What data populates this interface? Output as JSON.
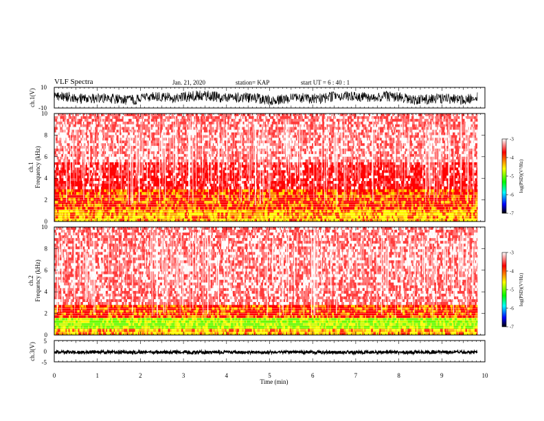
{
  "header": {
    "title": "VLF Spectra",
    "date": "Jan. 21, 2020",
    "station": "station= KAP",
    "start": "start  UT  =   6  : 40 : 1"
  },
  "colors": {
    "colormap": [
      "#ffffff",
      "#ff0000",
      "#ffff00",
      "#00ff00",
      "#00ffff",
      "#0000ff",
      "#000000"
    ],
    "trace": "#000000"
  },
  "chart_data": [
    {
      "type": "line",
      "name": "ch1-waveform",
      "ylabel": "ch.1(V)",
      "xlim": [
        0,
        10
      ],
      "ylim": [
        -10,
        10
      ],
      "yticks": [
        "10",
        "-10"
      ],
      "x_extent": [
        0,
        9.83
      ],
      "baseline": 0,
      "amplitude": 5
    },
    {
      "type": "heatmap",
      "name": "ch1-spectrogram",
      "ylabel": "ch.1\nFrequency (kHz)",
      "xlim": [
        0,
        10
      ],
      "ylim": [
        0,
        10
      ],
      "yticks": [
        "0",
        "2",
        "4",
        "6",
        "8",
        "10"
      ],
      "x_extent": [
        0,
        9.83
      ],
      "bands": [
        {
          "from": 0,
          "to": 1.1,
          "level": "yellow"
        },
        {
          "from": 1.1,
          "to": 3.0,
          "level": "orange"
        },
        {
          "from": 3.0,
          "to": 5.5,
          "level": "red"
        },
        {
          "from": 5.5,
          "to": 10,
          "level": "light-red"
        }
      ],
      "colorbar": {
        "label": "log(PSD)(V²/Hz)",
        "ticks": [
          "-3",
          "-4",
          "-5",
          "-6",
          "-7"
        ],
        "range": [
          -7,
          -3
        ]
      }
    },
    {
      "type": "heatmap",
      "name": "ch2-spectrogram",
      "ylabel": "ch.2\nFrequency (kHz)",
      "xlim": [
        0,
        10
      ],
      "ylim": [
        0,
        10
      ],
      "yticks": [
        "0",
        "2",
        "4",
        "6",
        "8",
        "10"
      ],
      "x_extent": [
        0,
        9.83
      ],
      "bands": [
        {
          "from": 0,
          "to": 0.6,
          "level": "yellow"
        },
        {
          "from": 0.6,
          "to": 1.6,
          "level": "green"
        },
        {
          "from": 1.6,
          "to": 2.8,
          "level": "orange"
        },
        {
          "from": 2.8,
          "to": 10,
          "level": "light-red"
        }
      ],
      "colorbar": {
        "label": "log(PSD)(V²/Hz)",
        "ticks": [
          "-3",
          "-4",
          "-5",
          "-6",
          "-7"
        ],
        "range": [
          -7,
          -3
        ]
      }
    },
    {
      "type": "line",
      "name": "ch3-waveform",
      "ylabel": "ch.3(V)",
      "xlabel": "Time  (min)",
      "xlim": [
        0,
        10
      ],
      "ylim": [
        -5,
        5
      ],
      "yticks": [
        "5",
        "0",
        "-5"
      ],
      "xticks": [
        "0",
        "1",
        "2",
        "3",
        "4",
        "5",
        "6",
        "7",
        "8",
        "9",
        "10"
      ],
      "x_extent": [
        0,
        9.83
      ],
      "baseline": -0.5
    }
  ]
}
